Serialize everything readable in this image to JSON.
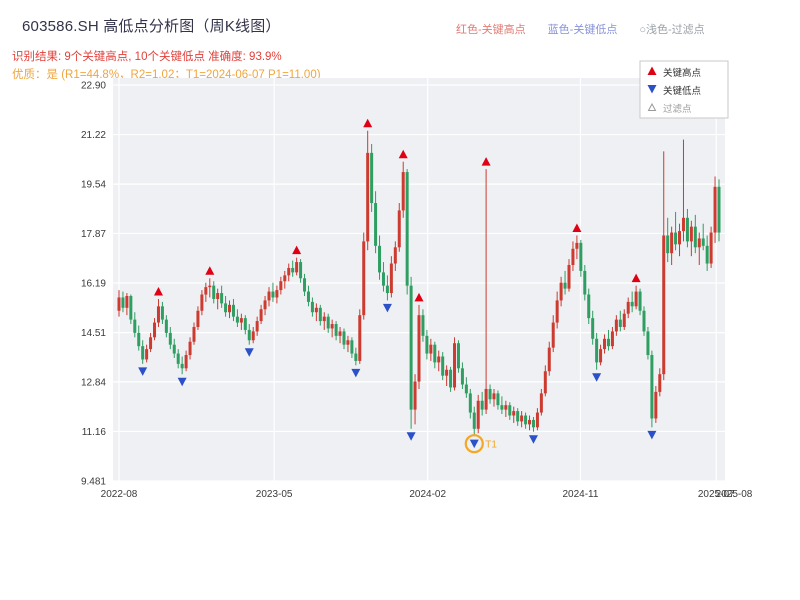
{
  "header": {
    "title": "603586.SH 高低点分析图（周K线图）",
    "legend_top": [
      {
        "label": "红色-关键高点",
        "color": "#e07b74"
      },
      {
        "label": "蓝色-关键低点",
        "color": "#8893d8"
      },
      {
        "label": "○浅色-过滤点",
        "color": "#9aa0a6"
      }
    ],
    "subtitle1": "识别结果: 9个关键高点, 10个关键低点  准确度: 93.9%",
    "subtitle2": "优质：是 (R1=44.8%，R2=1.02；T1=2024-06-07 P1=11.00)"
  },
  "chart_data": {
    "type": "candlestick",
    "title": "603586.SH 高低点分析图（周K线图）",
    "x_unit": "week",
    "ylim": [
      9.481,
      22.9
    ],
    "grid": true,
    "legend_position": "top-right-inside",
    "y_ticks": [
      {
        "v": 22.9,
        "label": "22.90"
      },
      {
        "v": 21.22,
        "label": "21.22"
      },
      {
        "v": 19.54,
        "label": "19.54"
      },
      {
        "v": 17.87,
        "label": "17.87"
      },
      {
        "v": 16.19,
        "label": "16.19"
      },
      {
        "v": 14.51,
        "label": "14.51"
      },
      {
        "v": 12.84,
        "label": "12.84"
      },
      {
        "v": 11.16,
        "label": "11.16"
      },
      {
        "v": 9.481,
        "label": "9.481"
      }
    ],
    "x_ticks": [
      {
        "i": 0,
        "label": "2022-08"
      },
      {
        "i": 39.3,
        "label": "2023-05"
      },
      {
        "i": 78.2,
        "label": "2024-02"
      },
      {
        "i": 116.9,
        "label": "2024-11"
      },
      {
        "i": 151.3,
        "label": "2025-07"
      },
      {
        "i": 155.8,
        "label": "2025-08"
      }
    ],
    "candles": [
      [
        15.25,
        15.95,
        15.05,
        15.7
      ],
      [
        15.7,
        15.9,
        15.2,
        15.35
      ],
      [
        15.35,
        15.85,
        15.1,
        15.75
      ],
      [
        15.75,
        15.8,
        14.8,
        14.95
      ],
      [
        14.95,
        15.2,
        14.35,
        14.5
      ],
      [
        14.5,
        14.75,
        13.9,
        14.05
      ],
      [
        14.05,
        14.25,
        13.45,
        13.6
      ],
      [
        13.6,
        14.1,
        13.5,
        13.95
      ],
      [
        13.95,
        14.5,
        13.85,
        14.35
      ],
      [
        14.35,
        15.0,
        14.25,
        14.85
      ],
      [
        14.85,
        15.65,
        14.7,
        15.4
      ],
      [
        15.4,
        15.55,
        14.8,
        14.95
      ],
      [
        14.95,
        15.1,
        14.35,
        14.5
      ],
      [
        14.5,
        14.7,
        13.95,
        14.1
      ],
      [
        14.1,
        14.3,
        13.65,
        13.8
      ],
      [
        13.8,
        13.95,
        13.3,
        13.45
      ],
      [
        13.45,
        13.7,
        13.1,
        13.3
      ],
      [
        13.3,
        13.9,
        13.2,
        13.75
      ],
      [
        13.75,
        14.35,
        13.6,
        14.2
      ],
      [
        14.2,
        14.85,
        14.1,
        14.7
      ],
      [
        14.7,
        15.4,
        14.6,
        15.25
      ],
      [
        15.25,
        15.95,
        15.1,
        15.8
      ],
      [
        15.8,
        16.2,
        15.55,
        16.05
      ],
      [
        16.05,
        16.35,
        15.7,
        16.1
      ],
      [
        16.1,
        16.25,
        15.5,
        15.65
      ],
      [
        15.65,
        16.0,
        15.3,
        15.85
      ],
      [
        15.85,
        16.1,
        15.35,
        15.5
      ],
      [
        15.5,
        15.75,
        15.05,
        15.2
      ],
      [
        15.2,
        15.6,
        15.0,
        15.45
      ],
      [
        15.45,
        15.65,
        14.9,
        15.05
      ],
      [
        15.05,
        15.3,
        14.7,
        14.85
      ],
      [
        14.85,
        15.15,
        14.6,
        15.0
      ],
      [
        15.0,
        15.1,
        14.45,
        14.6
      ],
      [
        14.6,
        14.8,
        14.1,
        14.25
      ],
      [
        14.25,
        14.7,
        14.15,
        14.55
      ],
      [
        14.55,
        15.05,
        14.4,
        14.9
      ],
      [
        14.9,
        15.45,
        14.8,
        15.3
      ],
      [
        15.3,
        15.75,
        15.1,
        15.6
      ],
      [
        15.6,
        16.05,
        15.4,
        15.9
      ],
      [
        15.9,
        16.2,
        15.55,
        15.7
      ],
      [
        15.7,
        16.1,
        15.5,
        15.95
      ],
      [
        15.95,
        16.4,
        15.8,
        16.25
      ],
      [
        16.25,
        16.6,
        16.0,
        16.45
      ],
      [
        16.45,
        16.85,
        16.25,
        16.7
      ],
      [
        16.7,
        16.95,
        16.4,
        16.55
      ],
      [
        16.55,
        17.05,
        16.45,
        16.9
      ],
      [
        16.9,
        17.0,
        16.2,
        16.35
      ],
      [
        16.35,
        16.5,
        15.75,
        15.9
      ],
      [
        15.9,
        16.1,
        15.4,
        15.55
      ],
      [
        15.55,
        15.7,
        15.05,
        15.2
      ],
      [
        15.2,
        15.5,
        14.9,
        15.35
      ],
      [
        15.35,
        15.45,
        14.75,
        14.9
      ],
      [
        14.9,
        15.2,
        14.6,
        15.05
      ],
      [
        15.05,
        15.15,
        14.5,
        14.65
      ],
      [
        14.65,
        14.95,
        14.35,
        14.8
      ],
      [
        14.8,
        14.9,
        14.25,
        14.4
      ],
      [
        14.4,
        14.7,
        14.15,
        14.55
      ],
      [
        14.55,
        14.65,
        13.95,
        14.1
      ],
      [
        14.1,
        14.4,
        13.85,
        14.25
      ],
      [
        14.25,
        14.35,
        13.65,
        13.8
      ],
      [
        13.8,
        14.0,
        13.4,
        13.55
      ],
      [
        13.55,
        15.3,
        13.45,
        15.1
      ],
      [
        15.1,
        17.9,
        14.95,
        17.6
      ],
      [
        17.6,
        21.35,
        17.3,
        20.6
      ],
      [
        20.6,
        20.9,
        18.6,
        18.9
      ],
      [
        18.9,
        19.3,
        17.2,
        17.45
      ],
      [
        17.45,
        17.8,
        16.3,
        16.55
      ],
      [
        16.55,
        16.9,
        15.9,
        16.1
      ],
      [
        16.1,
        16.45,
        15.6,
        15.85
      ],
      [
        15.85,
        17.1,
        15.7,
        16.85
      ],
      [
        16.85,
        17.6,
        16.6,
        17.4
      ],
      [
        17.4,
        18.9,
        17.25,
        18.65
      ],
      [
        18.65,
        20.3,
        18.4,
        19.95
      ],
      [
        19.95,
        20.05,
        15.8,
        16.1
      ],
      [
        16.1,
        16.4,
        11.25,
        11.9
      ],
      [
        11.9,
        13.1,
        11.4,
        12.85
      ],
      [
        12.85,
        15.45,
        12.6,
        15.1
      ],
      [
        15.1,
        15.3,
        14.2,
        14.4
      ],
      [
        14.4,
        14.6,
        13.6,
        13.8
      ],
      [
        13.8,
        14.3,
        13.55,
        14.1
      ],
      [
        14.1,
        14.2,
        13.3,
        13.5
      ],
      [
        13.5,
        13.9,
        13.2,
        13.7
      ],
      [
        13.7,
        13.85,
        12.9,
        13.05
      ],
      [
        13.05,
        13.4,
        12.7,
        13.25
      ],
      [
        13.25,
        13.35,
        12.5,
        12.65
      ],
      [
        12.65,
        14.35,
        12.55,
        14.15
      ],
      [
        14.15,
        14.25,
        13.15,
        13.3
      ],
      [
        13.3,
        13.5,
        12.6,
        12.75
      ],
      [
        12.75,
        13.0,
        12.3,
        12.45
      ],
      [
        12.45,
        12.6,
        11.6,
        11.8
      ],
      [
        11.8,
        12.0,
        11.0,
        11.25
      ],
      [
        11.25,
        12.4,
        11.1,
        12.2
      ],
      [
        12.2,
        12.5,
        11.7,
        11.9
      ],
      [
        11.9,
        20.05,
        11.75,
        12.6
      ],
      [
        12.6,
        12.75,
        12.1,
        12.25
      ],
      [
        12.25,
        12.6,
        12.0,
        12.45
      ],
      [
        12.45,
        12.55,
        11.9,
        12.05
      ],
      [
        12.05,
        12.35,
        11.75,
        11.9
      ],
      [
        11.9,
        12.2,
        11.65,
        12.05
      ],
      [
        12.05,
        12.15,
        11.55,
        11.7
      ],
      [
        11.7,
        12.0,
        11.45,
        11.85
      ],
      [
        11.85,
        11.95,
        11.35,
        11.5
      ],
      [
        11.5,
        11.85,
        11.3,
        11.7
      ],
      [
        11.7,
        11.8,
        11.25,
        11.4
      ],
      [
        11.4,
        11.7,
        11.2,
        11.55
      ],
      [
        11.55,
        11.65,
        11.15,
        11.3
      ],
      [
        11.3,
        11.95,
        11.2,
        11.8
      ],
      [
        11.8,
        12.6,
        11.7,
        12.45
      ],
      [
        12.45,
        13.4,
        12.35,
        13.2
      ],
      [
        13.2,
        14.2,
        13.05,
        14.0
      ],
      [
        14.0,
        15.1,
        13.85,
        14.85
      ],
      [
        14.85,
        15.9,
        14.65,
        15.6
      ],
      [
        15.6,
        16.4,
        15.4,
        16.2
      ],
      [
        16.2,
        16.6,
        15.8,
        16.0
      ],
      [
        16.0,
        17.0,
        15.9,
        16.8
      ],
      [
        16.8,
        17.6,
        16.6,
        17.35
      ],
      [
        17.35,
        17.8,
        17.0,
        17.55
      ],
      [
        17.55,
        17.65,
        16.4,
        16.6
      ],
      [
        16.6,
        16.8,
        15.6,
        15.8
      ],
      [
        15.8,
        16.0,
        14.8,
        15.0
      ],
      [
        15.0,
        15.25,
        14.1,
        14.3
      ],
      [
        14.3,
        14.5,
        13.25,
        13.5
      ],
      [
        13.5,
        14.1,
        13.4,
        13.95
      ],
      [
        13.95,
        14.45,
        13.8,
        14.3
      ],
      [
        14.3,
        14.6,
        13.9,
        14.05
      ],
      [
        14.05,
        14.7,
        13.95,
        14.55
      ],
      [
        14.55,
        15.1,
        14.4,
        14.95
      ],
      [
        14.95,
        15.25,
        14.55,
        14.7
      ],
      [
        14.7,
        15.3,
        14.6,
        15.15
      ],
      [
        15.15,
        15.7,
        15.0,
        15.55
      ],
      [
        15.55,
        15.9,
        15.2,
        15.4
      ],
      [
        15.4,
        16.1,
        15.3,
        15.9
      ],
      [
        15.9,
        16.0,
        15.1,
        15.25
      ],
      [
        15.25,
        15.4,
        14.4,
        14.55
      ],
      [
        14.55,
        14.7,
        13.6,
        13.75
      ],
      [
        13.75,
        13.9,
        11.3,
        11.6
      ],
      [
        11.6,
        12.7,
        11.45,
        12.5
      ],
      [
        12.5,
        13.3,
        12.35,
        13.1
      ],
      [
        13.1,
        20.65,
        12.9,
        17.8
      ],
      [
        17.8,
        18.4,
        16.9,
        17.2
      ],
      [
        17.2,
        18.1,
        16.8,
        17.9
      ],
      [
        17.9,
        18.6,
        17.3,
        17.5
      ],
      [
        17.5,
        18.2,
        17.1,
        17.95
      ],
      [
        17.95,
        21.05,
        17.6,
        18.4
      ],
      [
        18.4,
        18.7,
        17.4,
        17.6
      ],
      [
        17.6,
        18.3,
        17.1,
        18.1
      ],
      [
        18.1,
        18.5,
        17.2,
        17.4
      ],
      [
        17.4,
        17.9,
        16.8,
        17.7
      ],
      [
        17.7,
        18.2,
        17.3,
        17.45
      ],
      [
        17.45,
        17.8,
        16.6,
        16.85
      ],
      [
        16.85,
        18.1,
        16.7,
        17.9
      ],
      [
        17.9,
        19.8,
        17.55,
        19.45
      ],
      [
        19.45,
        19.7,
        17.6,
        17.9
      ]
    ],
    "key_highs": [
      {
        "index": 10,
        "price": 15.65
      },
      {
        "index": 23,
        "price": 16.35
      },
      {
        "index": 45,
        "price": 17.05
      },
      {
        "index": 63,
        "price": 21.35
      },
      {
        "index": 72,
        "price": 20.3
      },
      {
        "index": 76,
        "price": 15.45
      },
      {
        "index": 93,
        "price": 20.05
      },
      {
        "index": 116,
        "price": 17.8
      },
      {
        "index": 131,
        "price": 16.1
      }
    ],
    "key_lows": [
      {
        "index": 6,
        "price": 13.45
      },
      {
        "index": 16,
        "price": 13.1
      },
      {
        "index": 33,
        "price": 14.1
      },
      {
        "index": 60,
        "price": 13.4
      },
      {
        "index": 68,
        "price": 15.6
      },
      {
        "index": 74,
        "price": 11.25
      },
      {
        "index": 90,
        "price": 11.0
      },
      {
        "index": 105,
        "price": 11.15
      },
      {
        "index": 121,
        "price": 13.25
      },
      {
        "index": 135,
        "price": 11.3
      }
    ],
    "t1": {
      "index": 90,
      "price": 11.0,
      "label": "T1",
      "date": "2024-06-07"
    },
    "legend_box": [
      "关键高点",
      "关键低点",
      "过滤点"
    ],
    "colors": {
      "up": "#cc3a30",
      "down": "#2f9e62",
      "high_marker": "#e00013",
      "low_marker": "#2b50c8",
      "t1_circle": "#f5a623",
      "plot_bg": "#eef0f3",
      "grid": "#ffffff",
      "axis_text": "#3a3a3a"
    }
  }
}
